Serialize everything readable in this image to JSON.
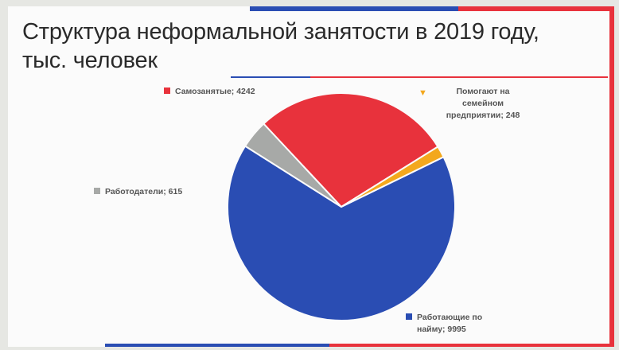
{
  "slide": {
    "title_line1": "Структура неформальной занятости в 2019 году,",
    "title_line2": "тыс. человек"
  },
  "colors": {
    "blue": "#2a4db3",
    "red": "#e8323c",
    "gray": "#a7a9a7",
    "orange": "#f3a81d"
  },
  "chart_data": {
    "type": "pie",
    "title": "Структура неформальной занятости в 2019 году, тыс. человек",
    "unit": "тыс. человек",
    "start_angle_deg": 64,
    "direction": "clockwise",
    "slices": [
      {
        "label": "Работающие по найму",
        "value": 9995,
        "color": "#2a4db3",
        "text": "Работающие по найму; 9995"
      },
      {
        "label": "Работодатели",
        "value": 615,
        "color": "#a7a9a7",
        "text": "Работодатели; 615"
      },
      {
        "label": "Самозанятые",
        "value": 4242,
        "color": "#e8323c",
        "text": "Самозанятые; 4242"
      },
      {
        "label": "Помогают на семейном предприятии",
        "value": 248,
        "color": "#f3a81d",
        "text": "Помогают на семейном предприятии; 248"
      }
    ],
    "labels": {
      "hired_line1": "Работающие по",
      "hired_line2": "найму; 9995",
      "employers": "Работодатели; 615",
      "self_employed": "Самозанятые; 4242",
      "family_line1": "Помогают на",
      "family_line2": "семейном",
      "family_line3": "предприятии; 248"
    }
  }
}
